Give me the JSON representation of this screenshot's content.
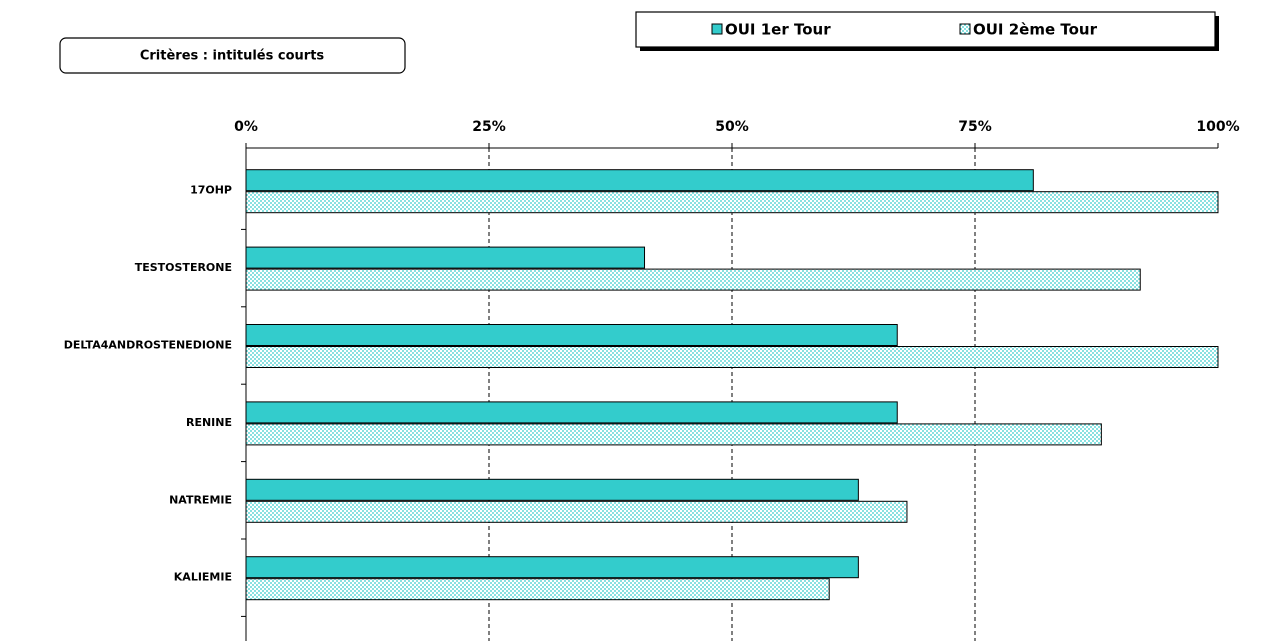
{
  "chart_data": {
    "type": "bar",
    "orientation": "horizontal",
    "title": "Critères : intitulés courts",
    "categories": [
      "17OHP",
      "TESTOSTERONE",
      "DELTA4ANDROSTENEDIONE",
      "RENINE",
      "NATREMIE",
      "KALIEMIE"
    ],
    "series": [
      {
        "name": "OUI 1er Tour",
        "color": "#33cccc",
        "pattern": "solid",
        "values": [
          81,
          41,
          67,
          67,
          63,
          63
        ]
      },
      {
        "name": "OUI 2ème Tour",
        "color": "#33cccc",
        "pattern": "dots",
        "values": [
          100,
          92,
          100,
          88,
          68,
          60
        ]
      }
    ],
    "xlim": [
      0,
      100
    ],
    "xticks": [
      {
        "value": 0,
        "label": "0%"
      },
      {
        "value": 25,
        "label": "25%"
      },
      {
        "value": 50,
        "label": "50%"
      },
      {
        "value": 75,
        "label": "75%"
      },
      {
        "value": 100,
        "label": "100%"
      }
    ],
    "grid": true,
    "legend": "top-right"
  }
}
